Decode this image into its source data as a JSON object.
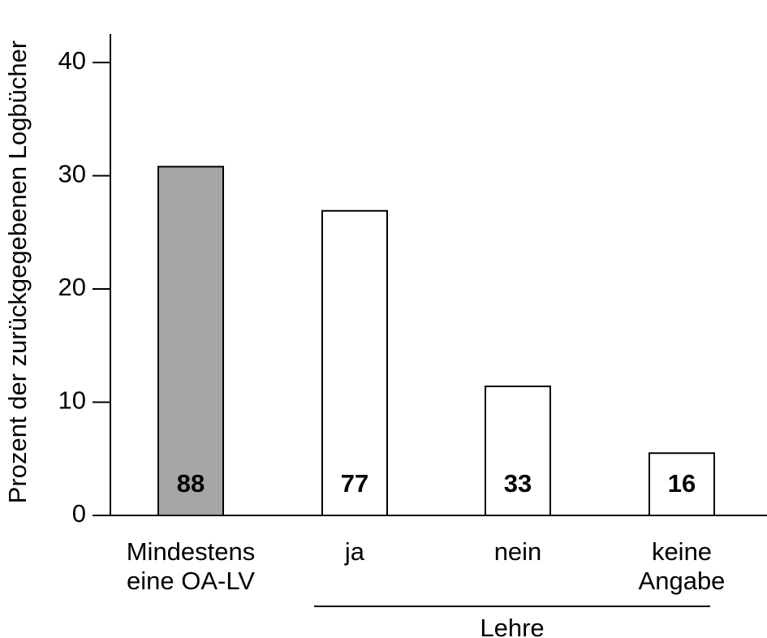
{
  "chart_data": {
    "type": "bar",
    "ylabel": "Prozent der zurückgegebenen Logbücher",
    "ylim": [
      0,
      42
    ],
    "yticks": [
      0,
      10,
      20,
      30,
      40
    ],
    "categories": [
      [
        "Mindestens",
        "eine OA-LV"
      ],
      [
        "ja"
      ],
      [
        "nein"
      ],
      [
        "keine",
        "Angabe"
      ]
    ],
    "values": [
      30.8,
      26.9,
      11.4,
      5.5
    ],
    "bar_labels": [
      "88",
      "77",
      "33",
      "16"
    ],
    "bar_fills": [
      "#a6a6a6",
      "#ffffff",
      "#ffffff",
      "#ffffff"
    ],
    "group": {
      "label": "Lehre",
      "from_index": 1,
      "to_index": 3
    },
    "grid": false
  }
}
